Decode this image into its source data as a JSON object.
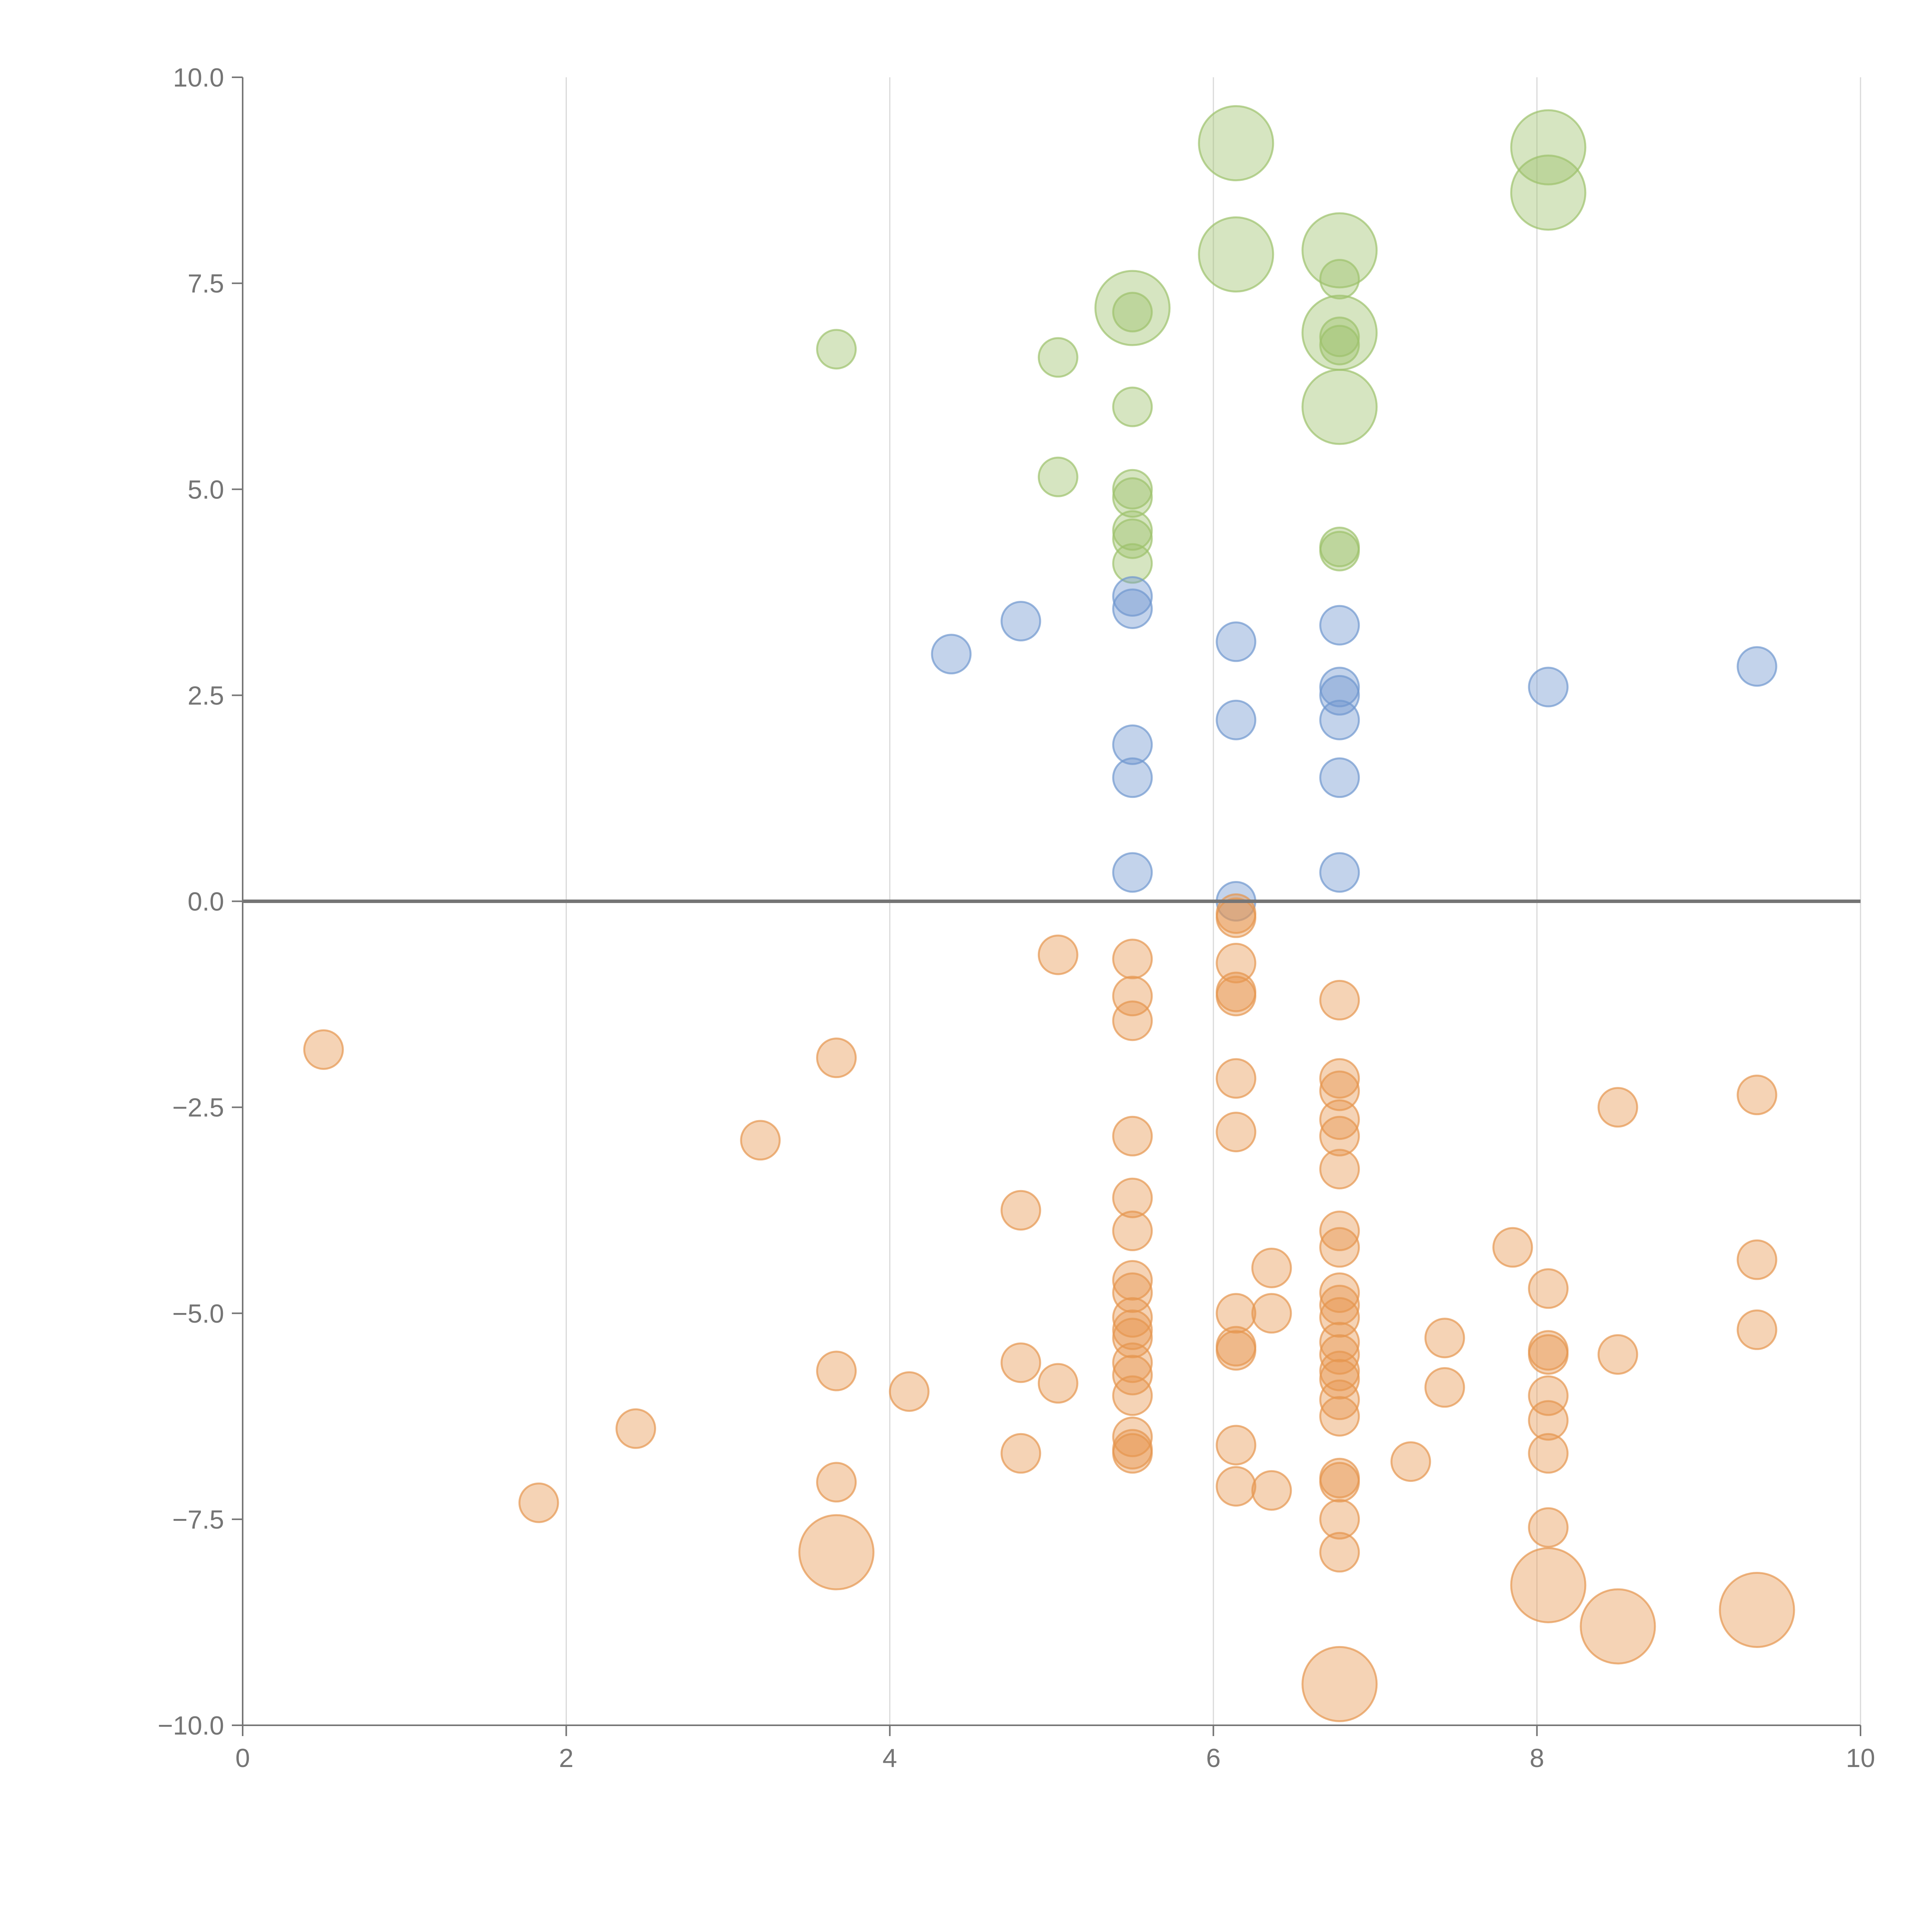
{
  "chart_data": {
    "type": "scatter",
    "title": "",
    "xlabel": "",
    "ylabel": "",
    "xlim": [
      0,
      10
    ],
    "ylim": [
      -10,
      10
    ],
    "x_ticks": [
      "0",
      "2",
      "4",
      "6",
      "8",
      "10"
    ],
    "y_ticks": [
      "10.0",
      "7.5",
      "5.0",
      "2.5",
      "0.0",
      "−2.5",
      "−5.0",
      "−7.5",
      "−10.0"
    ],
    "x_tick_values": [
      0,
      2,
      4,
      6,
      8,
      10
    ],
    "y_tick_values": [
      10,
      7.5,
      5,
      2.5,
      0,
      -2.5,
      -5,
      -7.5,
      -10
    ],
    "grid": "vertical",
    "colors": {
      "green": "#9dc26b",
      "blue": "#6f97cf",
      "orange": "#e6954f",
      "axis": "#757575",
      "grid": "#d9d9d9"
    },
    "series": [
      {
        "name": "green",
        "color": "#9dc26b",
        "points": [
          {
            "x": 3.67,
            "y": 6.7,
            "s": 1
          },
          {
            "x": 5.04,
            "y": 6.6,
            "s": 1
          },
          {
            "x": 5.04,
            "y": 5.15,
            "s": 1
          },
          {
            "x": 5.5,
            "y": 6.0,
            "s": 1
          },
          {
            "x": 5.5,
            "y": 5.0,
            "s": 1
          },
          {
            "x": 5.5,
            "y": 4.9,
            "s": 1
          },
          {
            "x": 5.5,
            "y": 4.5,
            "s": 1
          },
          {
            "x": 5.5,
            "y": 4.4,
            "s": 1
          },
          {
            "x": 5.5,
            "y": 4.1,
            "s": 1
          },
          {
            "x": 5.5,
            "y": 7.15,
            "s": 1
          },
          {
            "x": 5.5,
            "y": 7.2,
            "s": 2
          },
          {
            "x": 6.14,
            "y": 9.2,
            "s": 2
          },
          {
            "x": 6.14,
            "y": 7.85,
            "s": 2
          },
          {
            "x": 6.78,
            "y": 7.9,
            "s": 2
          },
          {
            "x": 6.78,
            "y": 7.55,
            "s": 1
          },
          {
            "x": 6.78,
            "y": 6.9,
            "s": 2
          },
          {
            "x": 6.78,
            "y": 6.85,
            "s": 1
          },
          {
            "x": 6.78,
            "y": 6.75,
            "s": 1
          },
          {
            "x": 6.78,
            "y": 6.0,
            "s": 2
          },
          {
            "x": 6.78,
            "y": 4.3,
            "s": 1
          },
          {
            "x": 6.78,
            "y": 4.25,
            "s": 1
          },
          {
            "x": 8.07,
            "y": 9.15,
            "s": 2
          },
          {
            "x": 8.07,
            "y": 8.6,
            "s": 2
          }
        ]
      },
      {
        "name": "blue",
        "color": "#6f97cf",
        "points": [
          {
            "x": 4.38,
            "y": 3.0,
            "s": 1
          },
          {
            "x": 4.81,
            "y": 3.4,
            "s": 1
          },
          {
            "x": 5.5,
            "y": 3.7,
            "s": 1
          },
          {
            "x": 5.5,
            "y": 3.55,
            "s": 1
          },
          {
            "x": 5.5,
            "y": 1.9,
            "s": 1
          },
          {
            "x": 5.5,
            "y": 1.5,
            "s": 1
          },
          {
            "x": 5.5,
            "y": 0.35,
            "s": 1
          },
          {
            "x": 6.14,
            "y": 3.15,
            "s": 1
          },
          {
            "x": 6.14,
            "y": 2.2,
            "s": 1
          },
          {
            "x": 6.14,
            "y": 0.0,
            "s": 1
          },
          {
            "x": 6.78,
            "y": 3.35,
            "s": 1
          },
          {
            "x": 6.78,
            "y": 2.6,
            "s": 1
          },
          {
            "x": 6.78,
            "y": 2.5,
            "s": 1
          },
          {
            "x": 6.78,
            "y": 2.2,
            "s": 1
          },
          {
            "x": 6.78,
            "y": 1.5,
            "s": 1
          },
          {
            "x": 6.78,
            "y": 0.35,
            "s": 1
          },
          {
            "x": 8.07,
            "y": 2.6,
            "s": 1
          },
          {
            "x": 9.36,
            "y": 2.85,
            "s": 1
          }
        ]
      },
      {
        "name": "orange",
        "color": "#e6954f",
        "points": [
          {
            "x": 0.5,
            "y": -1.8,
            "s": 1
          },
          {
            "x": 1.83,
            "y": -7.3,
            "s": 1
          },
          {
            "x": 2.43,
            "y": -6.4,
            "s": 1
          },
          {
            "x": 3.2,
            "y": -2.9,
            "s": 1
          },
          {
            "x": 3.67,
            "y": -1.9,
            "s": 1
          },
          {
            "x": 3.67,
            "y": -5.7,
            "s": 1
          },
          {
            "x": 3.67,
            "y": -7.05,
            "s": 1
          },
          {
            "x": 3.67,
            "y": -7.9,
            "s": 2
          },
          {
            "x": 4.12,
            "y": -5.95,
            "s": 1
          },
          {
            "x": 4.81,
            "y": -3.75,
            "s": 1
          },
          {
            "x": 4.81,
            "y": -5.6,
            "s": 1
          },
          {
            "x": 4.81,
            "y": -6.7,
            "s": 1
          },
          {
            "x": 5.04,
            "y": -0.65,
            "s": 1
          },
          {
            "x": 5.04,
            "y": -5.85,
            "s": 1
          },
          {
            "x": 5.5,
            "y": -0.7,
            "s": 1
          },
          {
            "x": 5.5,
            "y": -1.15,
            "s": 1
          },
          {
            "x": 5.5,
            "y": -1.45,
            "s": 1
          },
          {
            "x": 5.5,
            "y": -2.85,
            "s": 1
          },
          {
            "x": 5.5,
            "y": -3.6,
            "s": 1
          },
          {
            "x": 5.5,
            "y": -4.0,
            "s": 1
          },
          {
            "x": 5.5,
            "y": -4.6,
            "s": 1
          },
          {
            "x": 5.5,
            "y": -4.75,
            "s": 1
          },
          {
            "x": 5.5,
            "y": -5.05,
            "s": 1
          },
          {
            "x": 5.5,
            "y": -5.2,
            "s": 1
          },
          {
            "x": 5.5,
            "y": -5.3,
            "s": 1
          },
          {
            "x": 5.5,
            "y": -5.6,
            "s": 1
          },
          {
            "x": 5.5,
            "y": -5.75,
            "s": 1
          },
          {
            "x": 5.5,
            "y": -6.0,
            "s": 1
          },
          {
            "x": 5.5,
            "y": -6.5,
            "s": 1
          },
          {
            "x": 5.5,
            "y": -6.65,
            "s": 1
          },
          {
            "x": 5.5,
            "y": -6.7,
            "s": 1
          },
          {
            "x": 6.14,
            "y": -0.15,
            "s": 1
          },
          {
            "x": 6.14,
            "y": -0.2,
            "s": 1
          },
          {
            "x": 6.14,
            "y": -0.75,
            "s": 1
          },
          {
            "x": 6.14,
            "y": -1.1,
            "s": 1
          },
          {
            "x": 6.14,
            "y": -1.15,
            "s": 1
          },
          {
            "x": 6.14,
            "y": -2.15,
            "s": 1
          },
          {
            "x": 6.14,
            "y": -2.8,
            "s": 1
          },
          {
            "x": 6.14,
            "y": -5.0,
            "s": 1
          },
          {
            "x": 6.14,
            "y": -5.4,
            "s": 1
          },
          {
            "x": 6.14,
            "y": -5.45,
            "s": 1
          },
          {
            "x": 6.14,
            "y": -6.6,
            "s": 1
          },
          {
            "x": 6.14,
            "y": -7.1,
            "s": 1
          },
          {
            "x": 6.36,
            "y": -4.45,
            "s": 1
          },
          {
            "x": 6.36,
            "y": -5.0,
            "s": 1
          },
          {
            "x": 6.36,
            "y": -7.15,
            "s": 1
          },
          {
            "x": 6.78,
            "y": -1.2,
            "s": 1
          },
          {
            "x": 6.78,
            "y": -2.15,
            "s": 1
          },
          {
            "x": 6.78,
            "y": -2.3,
            "s": 1
          },
          {
            "x": 6.78,
            "y": -2.65,
            "s": 1
          },
          {
            "x": 6.78,
            "y": -2.85,
            "s": 1
          },
          {
            "x": 6.78,
            "y": -3.25,
            "s": 1
          },
          {
            "x": 6.78,
            "y": -4.0,
            "s": 1
          },
          {
            "x": 6.78,
            "y": -4.2,
            "s": 1
          },
          {
            "x": 6.78,
            "y": -4.75,
            "s": 1
          },
          {
            "x": 6.78,
            "y": -4.9,
            "s": 1
          },
          {
            "x": 6.78,
            "y": -5.05,
            "s": 1
          },
          {
            "x": 6.78,
            "y": -5.35,
            "s": 1
          },
          {
            "x": 6.78,
            "y": -5.5,
            "s": 1
          },
          {
            "x": 6.78,
            "y": -5.7,
            "s": 1
          },
          {
            "x": 6.78,
            "y": -5.8,
            "s": 1
          },
          {
            "x": 6.78,
            "y": -6.05,
            "s": 1
          },
          {
            "x": 6.78,
            "y": -6.25,
            "s": 1
          },
          {
            "x": 6.78,
            "y": -7.0,
            "s": 1
          },
          {
            "x": 6.78,
            "y": -7.05,
            "s": 1
          },
          {
            "x": 6.78,
            "y": -7.5,
            "s": 1
          },
          {
            "x": 6.78,
            "y": -7.9,
            "s": 1
          },
          {
            "x": 6.78,
            "y": -9.5,
            "s": 2
          },
          {
            "x": 7.22,
            "y": -6.8,
            "s": 1
          },
          {
            "x": 7.43,
            "y": -5.3,
            "s": 1
          },
          {
            "x": 7.43,
            "y": -5.9,
            "s": 1
          },
          {
            "x": 7.85,
            "y": -4.2,
            "s": 1
          },
          {
            "x": 8.07,
            "y": -4.7,
            "s": 1
          },
          {
            "x": 8.07,
            "y": -5.45,
            "s": 1
          },
          {
            "x": 8.07,
            "y": -5.5,
            "s": 1
          },
          {
            "x": 8.07,
            "y": -6.0,
            "s": 1
          },
          {
            "x": 8.07,
            "y": -6.3,
            "s": 1
          },
          {
            "x": 8.07,
            "y": -6.7,
            "s": 1
          },
          {
            "x": 8.07,
            "y": -7.6,
            "s": 1
          },
          {
            "x": 8.07,
            "y": -8.3,
            "s": 2
          },
          {
            "x": 8.5,
            "y": -2.5,
            "s": 1
          },
          {
            "x": 8.5,
            "y": -5.5,
            "s": 1
          },
          {
            "x": 8.5,
            "y": -8.8,
            "s": 2
          },
          {
            "x": 9.36,
            "y": -2.35,
            "s": 1
          },
          {
            "x": 9.36,
            "y": -4.35,
            "s": 1
          },
          {
            "x": 9.36,
            "y": -5.2,
            "s": 1
          },
          {
            "x": 9.36,
            "y": -8.6,
            "s": 2
          }
        ]
      }
    ]
  }
}
